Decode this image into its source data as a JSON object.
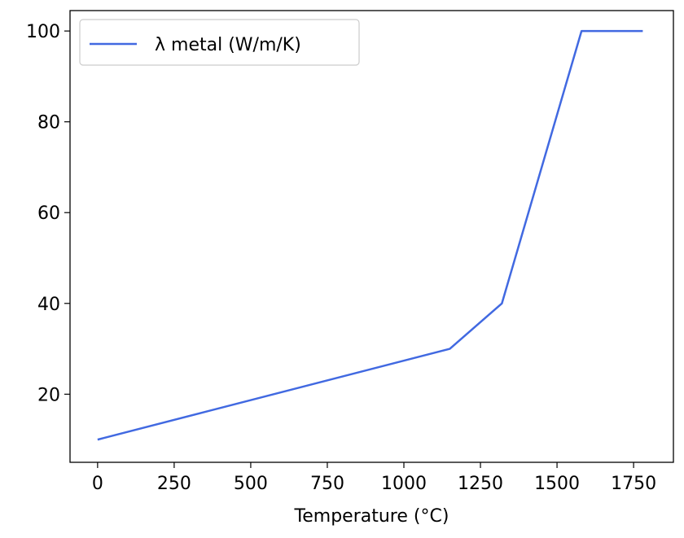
{
  "chart_data": {
    "type": "line",
    "title": "",
    "xlabel": "Temperature (°C)",
    "ylabel": "",
    "xlim": [
      -90,
      1880
    ],
    "ylim": [
      5,
      104.5
    ],
    "xticks": [
      0,
      250,
      500,
      750,
      1000,
      1250,
      1500,
      1750
    ],
    "yticks": [
      20,
      40,
      60,
      80,
      100
    ],
    "grid": false,
    "legend_position": "upper-left",
    "series": [
      {
        "name": "λ metal (W/m/K)",
        "color": "#4169e1",
        "x": [
          0,
          1150,
          1320,
          1580,
          1780
        ],
        "y": [
          10,
          30,
          40,
          100,
          100
        ]
      }
    ]
  }
}
